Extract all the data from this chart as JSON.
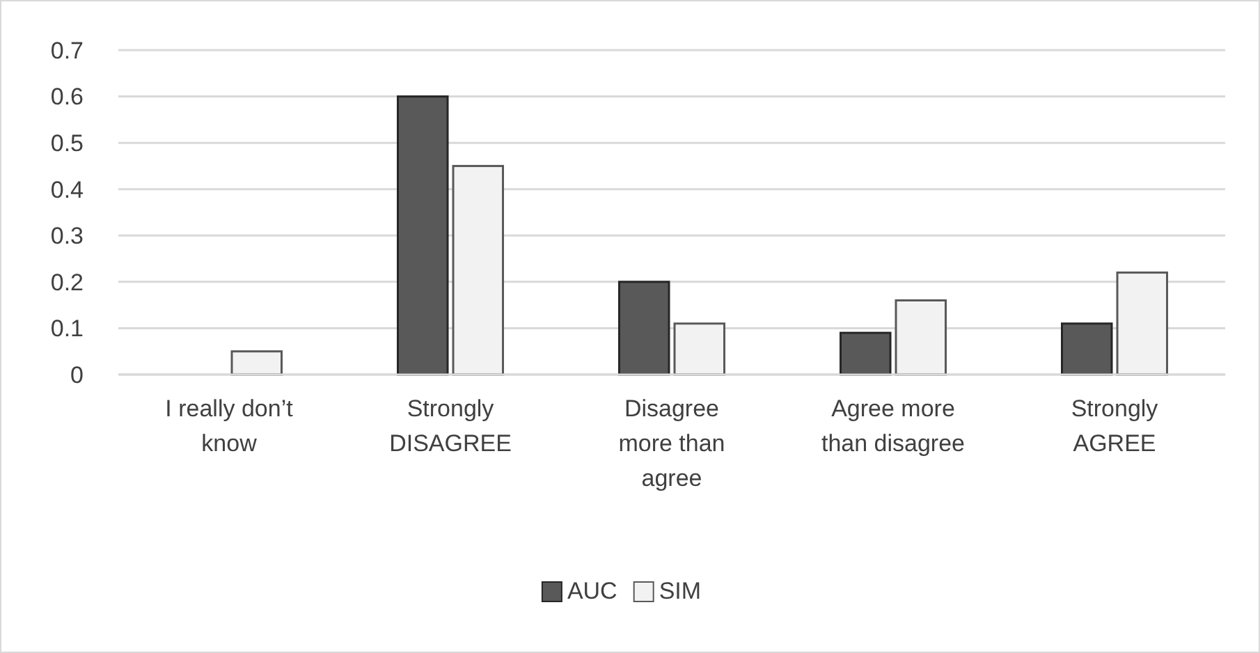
{
  "chart_data": {
    "type": "bar",
    "categories": [
      "I really don’t know",
      "Strongly DISAGREE",
      "Disagree more than agree",
      "Agree more than disagree",
      "Strongly AGREE"
    ],
    "series": [
      {
        "name": "AUC",
        "color": "#595959",
        "values": [
          0,
          0.6,
          0.2,
          0.09,
          0.11
        ]
      },
      {
        "name": "SIM",
        "color": "#f2f2f2",
        "values": [
          0.05,
          0.45,
          0.11,
          0.16,
          0.22
        ]
      }
    ],
    "ylim": [
      0,
      0.7
    ],
    "yticks": [
      0,
      0.1,
      0.2,
      0.3,
      0.4,
      0.5,
      0.6,
      0.7
    ],
    "grid": "y",
    "legend": "bottom"
  }
}
